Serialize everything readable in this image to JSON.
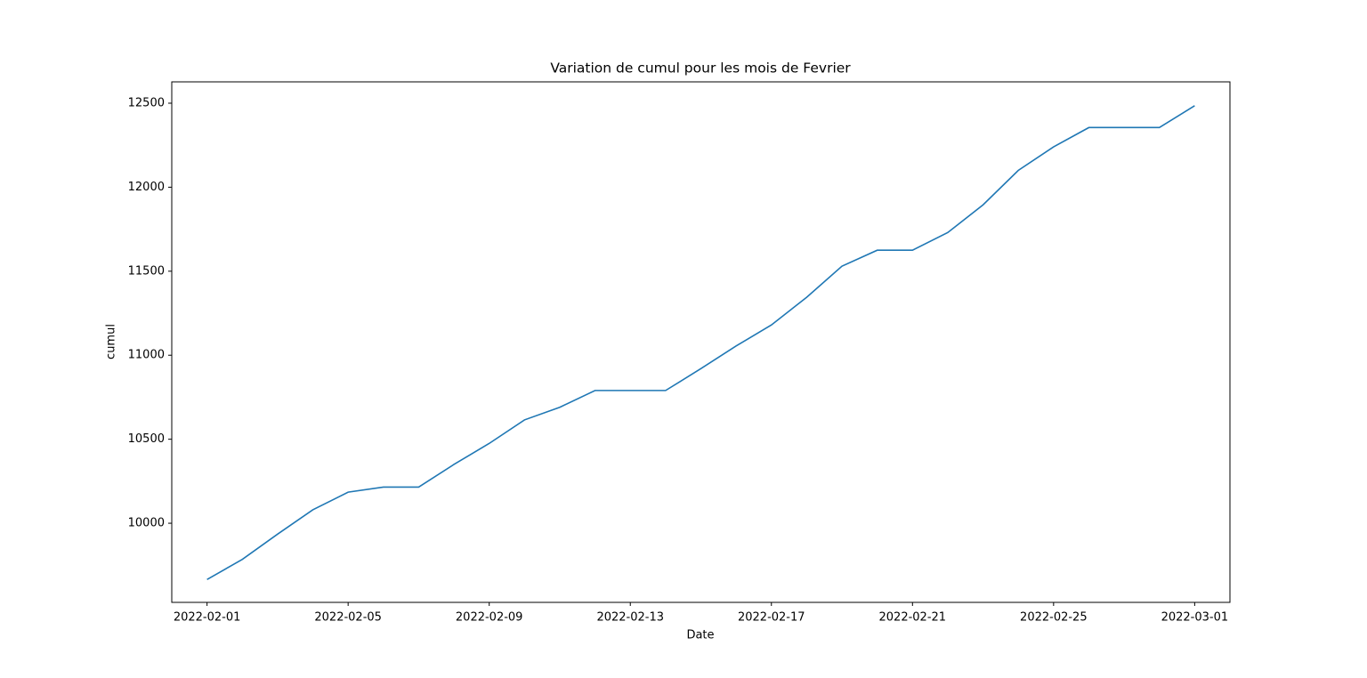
{
  "chart_data": {
    "type": "line",
    "title": "Variation de cumul pour les mois de Fevrier",
    "x_label": "Date",
    "y_label": "cumul",
    "x": [
      "2022-02-01",
      "2022-02-02",
      "2022-02-03",
      "2022-02-04",
      "2022-02-05",
      "2022-02-06",
      "2022-02-07",
      "2022-02-08",
      "2022-02-09",
      "2022-02-10",
      "2022-02-11",
      "2022-02-12",
      "2022-02-13",
      "2022-02-14",
      "2022-02-15",
      "2022-02-16",
      "2022-02-17",
      "2022-02-18",
      "2022-02-19",
      "2022-02-20",
      "2022-02-21",
      "2022-02-22",
      "2022-02-23",
      "2022-02-24",
      "2022-02-25",
      "2022-02-26",
      "2022-02-27",
      "2022-02-28",
      "2022-03-01"
    ],
    "series": [
      {
        "name": "cumul",
        "color": "#1f77b4",
        "values": [
          9665,
          9785,
          9935,
          10080,
          10185,
          10215,
          10215,
          10350,
          10475,
          10615,
          10690,
          10790,
          10790,
          10790,
          10920,
          11055,
          11180,
          11345,
          11530,
          11625,
          11625,
          11730,
          11895,
          12100,
          12240,
          12355,
          12355,
          12355,
          12485
        ]
      }
    ],
    "xlim": [
      "2022-01-31",
      "2022-03-02"
    ],
    "xticks": [
      "2022-02-01",
      "2022-02-05",
      "2022-02-09",
      "2022-02-13",
      "2022-02-17",
      "2022-02-21",
      "2022-02-25",
      "2022-03-01"
    ],
    "ylim": [
      9529,
      12627
    ],
    "yticks": [
      10000,
      10500,
      11000,
      11500,
      12000,
      12500
    ],
    "grid": false
  }
}
